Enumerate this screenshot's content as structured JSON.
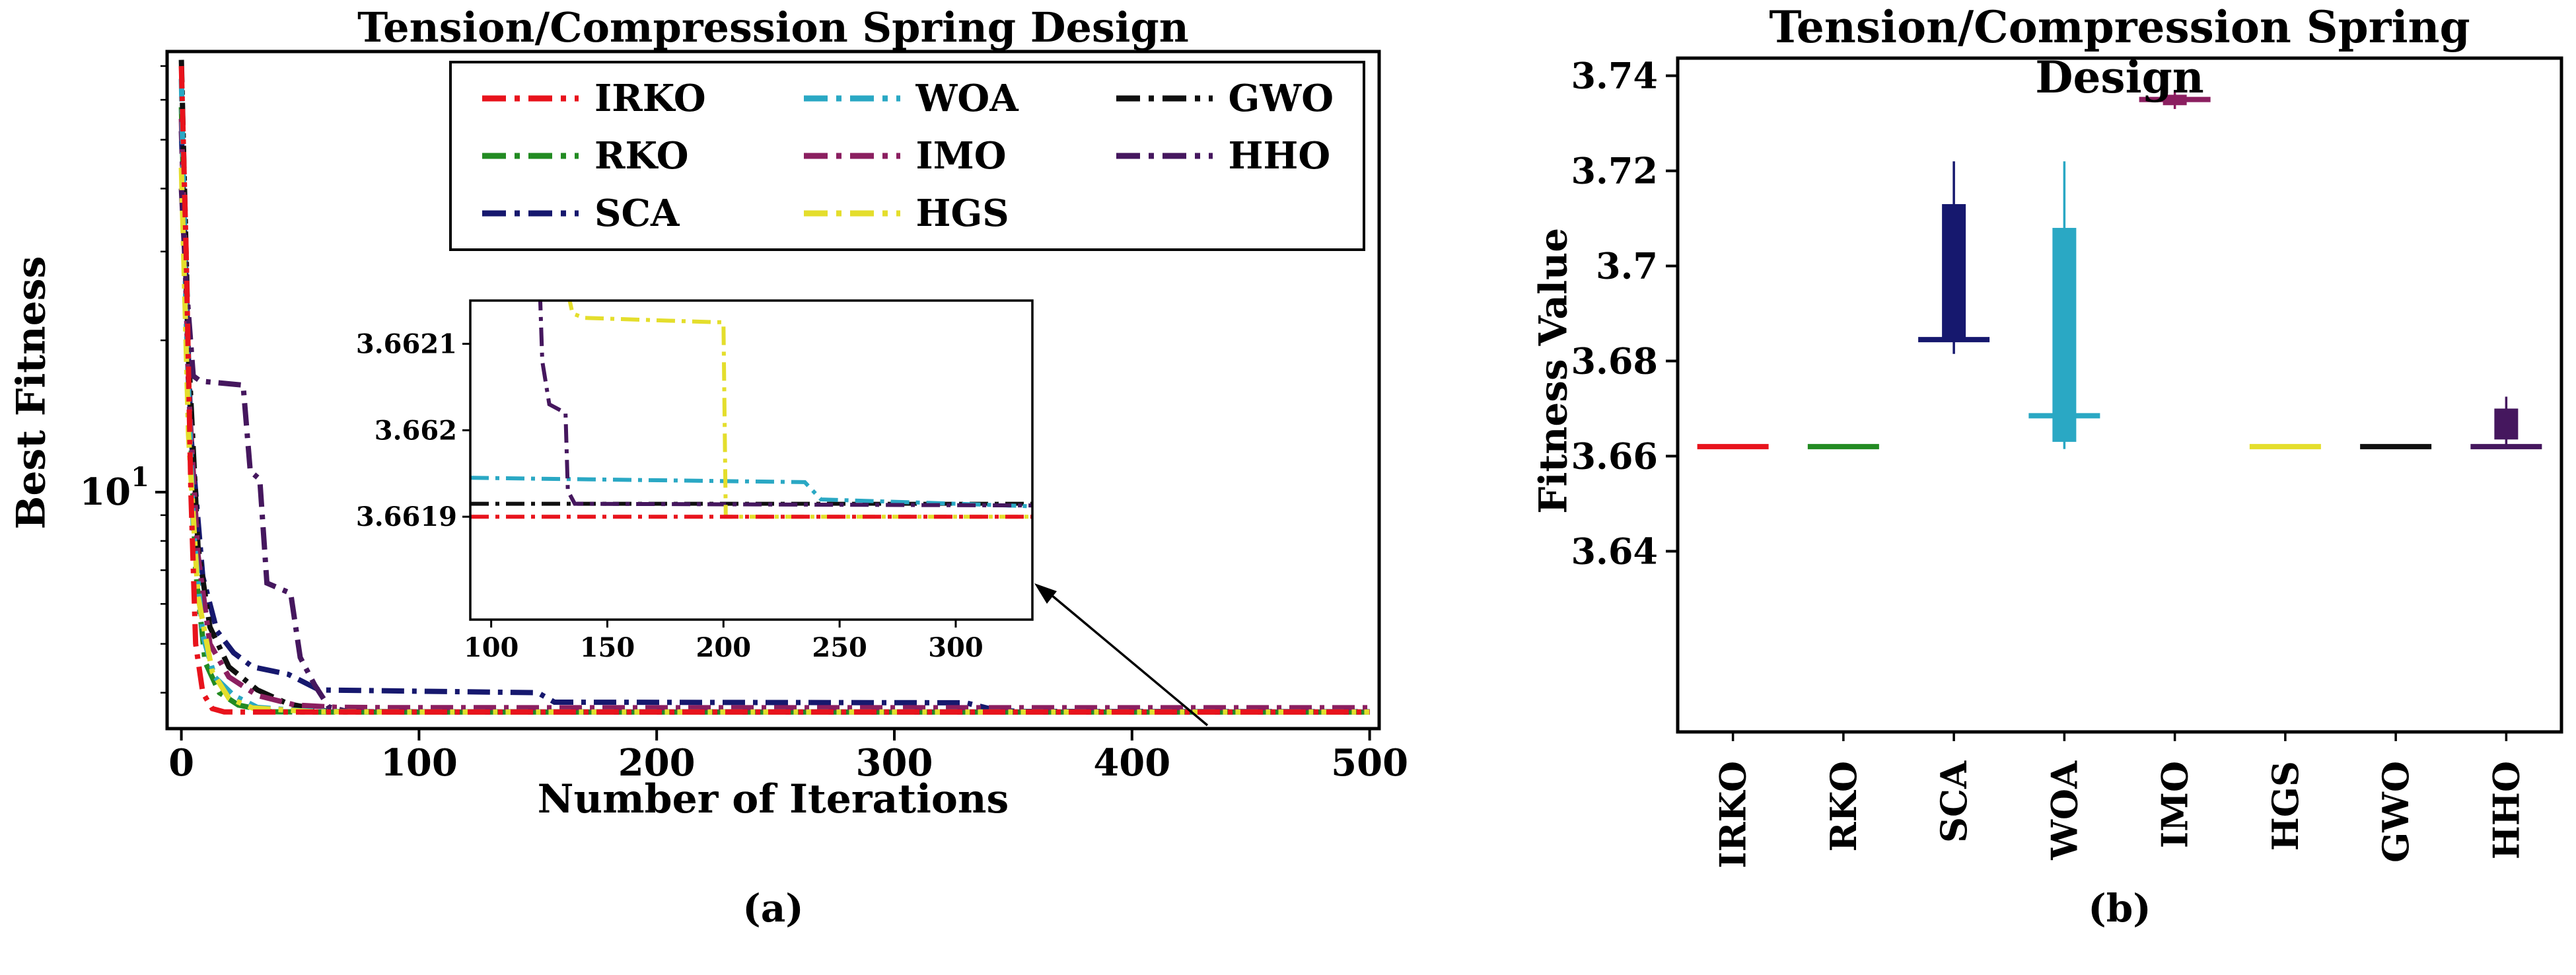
{
  "figure": {
    "background": "#ffffff"
  },
  "chart_data": [
    {
      "type": "line",
      "panel": "a",
      "title": "Tension/Compression Spring Design",
      "xlabel": "Number of Iterations",
      "ylabel": "Best Fitness",
      "caption": "(a)",
      "yscale": "log",
      "xlim": [
        -6,
        504
      ],
      "ylim": [
        3.395,
        74.8
      ],
      "xticks": [
        0,
        100,
        200,
        300,
        400,
        500
      ],
      "ytick_log": {
        "value": 10,
        "base": "10",
        "exponent": "1"
      },
      "minor_yticks": [
        4,
        5,
        6,
        7,
        8,
        9,
        20,
        30,
        40,
        50,
        60,
        70
      ],
      "legend": {
        "columns": 3,
        "order": [
          "IRKO",
          "RKO",
          "SCA",
          "WOA",
          "IMO",
          "HGS",
          "GWO",
          "HHO"
        ]
      },
      "series": [
        {
          "name": "RKO",
          "color": "#228b22",
          "points": [
            [
              0,
              58
            ],
            [
              3,
              17
            ],
            [
              6,
              7
            ],
            [
              10,
              4.6
            ],
            [
              16,
              4.0
            ],
            [
              24,
              3.78
            ],
            [
              38,
              3.666
            ],
            [
              60,
              3.6625
            ],
            [
              500,
              3.662
            ]
          ]
        },
        {
          "name": "SCA",
          "color": "#16186e",
          "points": [
            [
              0,
              52
            ],
            [
              4,
              13
            ],
            [
              9,
              6.8
            ],
            [
              15,
              5.3
            ],
            [
              22,
              4.8
            ],
            [
              30,
              4.5
            ],
            [
              45,
              4.35
            ],
            [
              58,
              4.05
            ],
            [
              150,
              4.0
            ],
            [
              157,
              3.83
            ],
            [
              330,
              3.82
            ],
            [
              342,
              3.7
            ],
            [
              352,
              3.672
            ],
            [
              500,
              3.668
            ]
          ]
        },
        {
          "name": "GWO",
          "color": "#101010",
          "points": [
            [
              0,
              72
            ],
            [
              3,
              19
            ],
            [
              7,
              7.8
            ],
            [
              12,
              5.4
            ],
            [
              20,
              4.5
            ],
            [
              32,
              4.05
            ],
            [
              45,
              3.8
            ],
            [
              62,
              3.672
            ],
            [
              110,
              3.665
            ],
            [
              200,
              3.663
            ],
            [
              500,
              3.662
            ]
          ]
        },
        {
          "name": "IMO",
          "color": "#8b1f60",
          "points": [
            [
              0,
              55
            ],
            [
              3,
              16
            ],
            [
              7,
              7.5
            ],
            [
              12,
              5.0
            ],
            [
              20,
              4.3
            ],
            [
              32,
              3.95
            ],
            [
              48,
              3.78
            ],
            [
              65,
              3.742
            ],
            [
              90,
              3.736
            ],
            [
              500,
              3.735
            ]
          ]
        },
        {
          "name": "WOA",
          "color": "#2aa8c4",
          "points": [
            [
              0,
              66
            ],
            [
              2,
              22
            ],
            [
              5,
              8.5
            ],
            [
              9,
              5.2
            ],
            [
              14,
              4.3
            ],
            [
              22,
              3.95
            ],
            [
              32,
              3.74
            ],
            [
              50,
              3.685
            ],
            [
              70,
              3.667
            ],
            [
              100,
              3.6625
            ],
            [
              240,
              3.6621
            ],
            [
              308,
              3.662
            ],
            [
              500,
              3.6619
            ]
          ]
        },
        {
          "name": "HHO",
          "color": "#45175e",
          "points": [
            [
              0,
              40
            ],
            [
              2,
              26
            ],
            [
              5,
              17
            ],
            [
              8,
              16.6
            ],
            [
              26,
              16.3
            ],
            [
              29,
              11
            ],
            [
              33,
              10.6
            ],
            [
              36,
              6.6
            ],
            [
              46,
              6.3
            ],
            [
              50,
              4.7
            ],
            [
              56,
              4.15
            ],
            [
              62,
              3.75
            ],
            [
              70,
              3.669
            ],
            [
              115,
              3.6625
            ],
            [
              133,
              3.662
            ],
            [
              500,
              3.6619
            ]
          ]
        },
        {
          "name": "HGS",
          "color": "#e4de2c",
          "points": [
            [
              0,
              44
            ],
            [
              3,
              13
            ],
            [
              7,
              6.2
            ],
            [
              13,
              4.4
            ],
            [
              20,
              3.9
            ],
            [
              30,
              3.73
            ],
            [
              55,
              3.668
            ],
            [
              90,
              3.6635
            ],
            [
              128,
              3.6621
            ],
            [
              200,
              3.6621
            ],
            [
              204,
              3.6619
            ],
            [
              500,
              3.6619
            ]
          ]
        },
        {
          "name": "IRKO",
          "color": "#e8131c",
          "points": [
            [
              0,
              70
            ],
            [
              2,
              30
            ],
            [
              4,
              10
            ],
            [
              6,
              5
            ],
            [
              9,
              4
            ],
            [
              13,
              3.72
            ],
            [
              18,
              3.664
            ],
            [
              30,
              3.662
            ],
            [
              500,
              3.6619
            ]
          ]
        }
      ],
      "inset": {
        "xlim": [
          91,
          333
        ],
        "ylim": [
          3.661781,
          3.66215
        ],
        "xticks": [
          100,
          150,
          200,
          250,
          300
        ],
        "yticks": [
          {
            "value": 3.6619,
            "label": "3.6619"
          },
          {
            "value": 3.662,
            "label": "3.662"
          },
          {
            "value": 3.6621,
            "label": "3.6621"
          }
        ],
        "series": [
          {
            "name": "GWO",
            "points": [
              [
                91,
                3.661915
              ],
              [
                333,
                3.661915
              ]
            ]
          },
          {
            "name": "WOA",
            "points": [
              [
                91,
                3.661945
              ],
              [
                235,
                3.66194
              ],
              [
                242,
                3.66192
              ],
              [
                300,
                3.661915
              ],
              [
                333,
                3.661912
              ]
            ]
          },
          {
            "name": "HHO",
            "points": [
              [
                121,
                3.66216
              ],
              [
                122,
                3.66208
              ],
              [
                125,
                3.66203
              ],
              [
                132,
                3.66202
              ],
              [
                133,
                3.66193
              ],
              [
                136,
                3.661915
              ],
              [
                333,
                3.661913
              ]
            ]
          },
          {
            "name": "HGS",
            "points": [
              [
                133,
                3.66216
              ],
              [
                135,
                3.662135
              ],
              [
                140,
                3.66213
              ],
              [
                196,
                3.662125
              ],
              [
                200,
                3.662125
              ],
              [
                201,
                3.6619
              ],
              [
                333,
                3.6619
              ]
            ]
          },
          {
            "name": "IRKO",
            "points": [
              [
                91,
                3.6619
              ],
              [
                333,
                3.6619
              ]
            ]
          }
        ]
      }
    },
    {
      "type": "boxplot",
      "panel": "b",
      "title": "Tension/Compression Spring Design",
      "ylabel": "Fitness Value",
      "caption": "(b)",
      "ylim": [
        3.602,
        3.7437
      ],
      "yticks": [
        {
          "value": 3.64,
          "label": "3.64"
        },
        {
          "value": 3.66,
          "label": "3.66"
        },
        {
          "value": 3.68,
          "label": "3.68"
        },
        {
          "value": 3.7,
          "label": "3.7"
        },
        {
          "value": 3.72,
          "label": "3.72"
        },
        {
          "value": 3.74,
          "label": "3.74"
        }
      ],
      "categories": [
        "IRKO",
        "RKO",
        "SCA",
        "WOA",
        "IMO",
        "HGS",
        "GWO",
        "HHO"
      ],
      "boxes": [
        {
          "name": "IRKO",
          "color": "#e8131c",
          "low": 3.662,
          "q1": 3.662,
          "median": 3.662,
          "q3": 3.662,
          "high": 3.662
        },
        {
          "name": "RKO",
          "color": "#228b22",
          "low": 3.662,
          "q1": 3.662,
          "median": 3.662,
          "q3": 3.662,
          "high": 3.662
        },
        {
          "name": "SCA",
          "color": "#16186e",
          "low": 3.6815,
          "q1": 3.684,
          "median": 3.6845,
          "q3": 3.713,
          "high": 3.722
        },
        {
          "name": "WOA",
          "color": "#2aa8c4",
          "low": 3.6615,
          "q1": 3.663,
          "median": 3.6685,
          "q3": 3.708,
          "high": 3.722
        },
        {
          "name": "IMO",
          "color": "#8b1f60",
          "low": 3.733,
          "q1": 3.7338,
          "median": 3.735,
          "q3": 3.736,
          "high": 3.7365
        },
        {
          "name": "HGS",
          "color": "#e4de2c",
          "low": 3.662,
          "q1": 3.662,
          "median": 3.662,
          "q3": 3.662,
          "high": 3.662
        },
        {
          "name": "GWO",
          "color": "#101010",
          "low": 3.662,
          "q1": 3.662,
          "median": 3.662,
          "q3": 3.662,
          "high": 3.662
        },
        {
          "name": "HHO",
          "color": "#45175e",
          "low": 3.6619,
          "q1": 3.6635,
          "median": 3.662,
          "q3": 3.67,
          "high": 3.6725
        }
      ]
    }
  ]
}
